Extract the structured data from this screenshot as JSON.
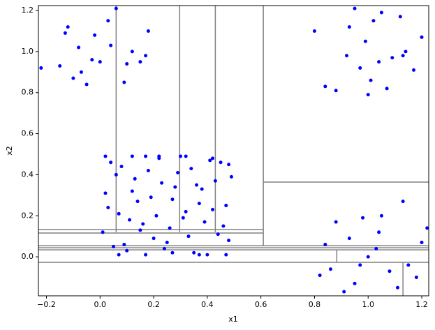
{
  "chart_data": {
    "type": "scatter",
    "xlabel": "x1",
    "ylabel": "x2",
    "color": "#0000ff",
    "xlim": [
      -0.23,
      1.226
    ],
    "ylim": [
      -0.19,
      1.224
    ],
    "xticks": [
      {
        "value": -0.2,
        "label": "−0.2"
      },
      {
        "value": 0,
        "label": "0.0"
      },
      {
        "value": 0.2,
        "label": "0.2"
      },
      {
        "value": 0.4,
        "label": "0.4"
      },
      {
        "value": 0.6,
        "label": "0.6"
      },
      {
        "value": 0.8,
        "label": "0.8"
      },
      {
        "value": 1,
        "label": "1.0"
      },
      {
        "value": 1.2,
        "label": "1.2"
      }
    ],
    "yticks": [
      {
        "value": 0,
        "label": "0.0"
      },
      {
        "value": 0.2,
        "label": "0.2"
      },
      {
        "value": 0.4,
        "label": "0.4"
      },
      {
        "value": 0.6,
        "label": "0.6"
      },
      {
        "value": 0.8,
        "label": "0.8"
      },
      {
        "value": 1,
        "label": "1.0"
      },
      {
        "value": 1.2,
        "label": "1.2"
      }
    ],
    "x": [
      0.02,
      0.05,
      0.08,
      0.11,
      0.14,
      0.17,
      0.2,
      0.23,
      0.26,
      0.29,
      0.32,
      0.35,
      0.38,
      0.41,
      0.44,
      0.47,
      0.49,
      0.01,
      0.04,
      0.07,
      0.1,
      0.13,
      0.16,
      0.19,
      0.22,
      0.25,
      0.28,
      0.31,
      0.34,
      0.37,
      0.4,
      0.43,
      0.46,
      0.48,
      0.03,
      0.06,
      0.09,
      0.12,
      0.15,
      0.18,
      0.21,
      0.24,
      0.27,
      0.3,
      0.33,
      0.36,
      0.39,
      0.42,
      0.45,
      0.48,
      0.02,
      0.12,
      0.22,
      0.32,
      0.42,
      0.07,
      0.17,
      0.27,
      0.37,
      0.47,
      -0.15,
      -0.12,
      -0.1,
      -0.08,
      -0.05,
      -0.02,
      0.0,
      0.03,
      0.06,
      0.09,
      0.12,
      0.15,
      0.18,
      -0.13,
      -0.07,
      -0.03,
      0.04,
      0.1,
      0.17,
      -0.22,
      0.8,
      0.84,
      0.88,
      0.92,
      0.95,
      0.97,
      1.0,
      1.02,
      1.05,
      1.07,
      1.09,
      1.12,
      1.14,
      1.17,
      1.2,
      0.99,
      1.04,
      0.93,
      1.01,
      1.13,
      0.82,
      0.84,
      0.86,
      0.88,
      0.91,
      0.93,
      0.95,
      0.98,
      1.0,
      1.03,
      1.05,
      1.08,
      1.11,
      1.13,
      1.15,
      1.18,
      1.2,
      1.22,
      0.97,
      1.04
    ],
    "values": [
      0.31,
      0.05,
      0.44,
      0.18,
      0.27,
      0.49,
      0.09,
      0.36,
      0.14,
      0.41,
      0.22,
      0.02,
      0.33,
      0.47,
      0.11,
      0.25,
      0.39,
      0.12,
      0.46,
      0.21,
      0.03,
      0.38,
      0.16,
      0.29,
      0.48,
      0.07,
      0.34,
      0.19,
      0.43,
      0.26,
      0.01,
      0.37,
      0.15,
      0.45,
      0.24,
      0.4,
      0.06,
      0.32,
      0.13,
      0.42,
      0.2,
      0.04,
      0.28,
      0.49,
      0.1,
      0.35,
      0.17,
      0.23,
      0.46,
      0.08,
      0.49,
      0.49,
      0.49,
      0.49,
      0.48,
      0.01,
      0.01,
      0.02,
      0.01,
      0.01,
      0.93,
      1.12,
      0.87,
      1.02,
      0.84,
      1.08,
      0.95,
      1.15,
      1.21,
      0.85,
      1.0,
      0.95,
      1.1,
      1.09,
      0.9,
      0.96,
      1.03,
      0.94,
      0.98,
      0.92,
      1.1,
      0.83,
      0.81,
      0.98,
      1.21,
      0.92,
      0.79,
      1.15,
      1.19,
      0.82,
      0.97,
      1.17,
      1.0,
      0.91,
      1.07,
      1.05,
      0.95,
      1.12,
      0.86,
      0.98,
      -0.09,
      0.06,
      -0.06,
      0.17,
      -0.17,
      0.09,
      -0.13,
      0.19,
      0.0,
      0.04,
      0.2,
      -0.07,
      -0.15,
      0.27,
      -0.04,
      -0.1,
      0.07,
      0.14,
      -0.04,
      0.12
    ],
    "splits": [
      {
        "x": [
          0.06,
          0.06
        ],
        "y": [
          1.224,
          0.12
        ]
      },
      {
        "x": [
          0.297,
          0.297
        ],
        "y": [
          1.224,
          0.12
        ]
      },
      {
        "x": [
          0.43,
          0.43
        ],
        "y": [
          1.224,
          0.12
        ]
      },
      {
        "x": [
          0.609,
          0.609
        ],
        "y": [
          1.224,
          0.054
        ]
      },
      {
        "x": [
          0.609,
          1.226
        ],
        "y": [
          0.364,
          0.364
        ]
      },
      {
        "x": [
          -0.23,
          0.609
        ],
        "y": [
          0.133,
          0.133
        ]
      },
      {
        "x": [
          -0.23,
          0.609
        ],
        "y": [
          0.116,
          0.116
        ]
      },
      {
        "x": [
          -0.23,
          1.226
        ],
        "y": [
          0.054,
          0.054
        ]
      },
      {
        "x": [
          -0.23,
          1.226
        ],
        "y": [
          0.044,
          0.044
        ]
      },
      {
        "x": [
          -0.23,
          1.226
        ],
        "y": [
          0.034,
          0.034
        ]
      },
      {
        "x": [
          0.883,
          0.883
        ],
        "y": [
          0.034,
          -0.027
        ]
      },
      {
        "x": [
          -0.23,
          1.226
        ],
        "y": [
          -0.027,
          -0.027
        ]
      },
      {
        "x": [
          1.13,
          1.13
        ],
        "y": [
          -0.027,
          -0.19
        ]
      }
    ]
  }
}
